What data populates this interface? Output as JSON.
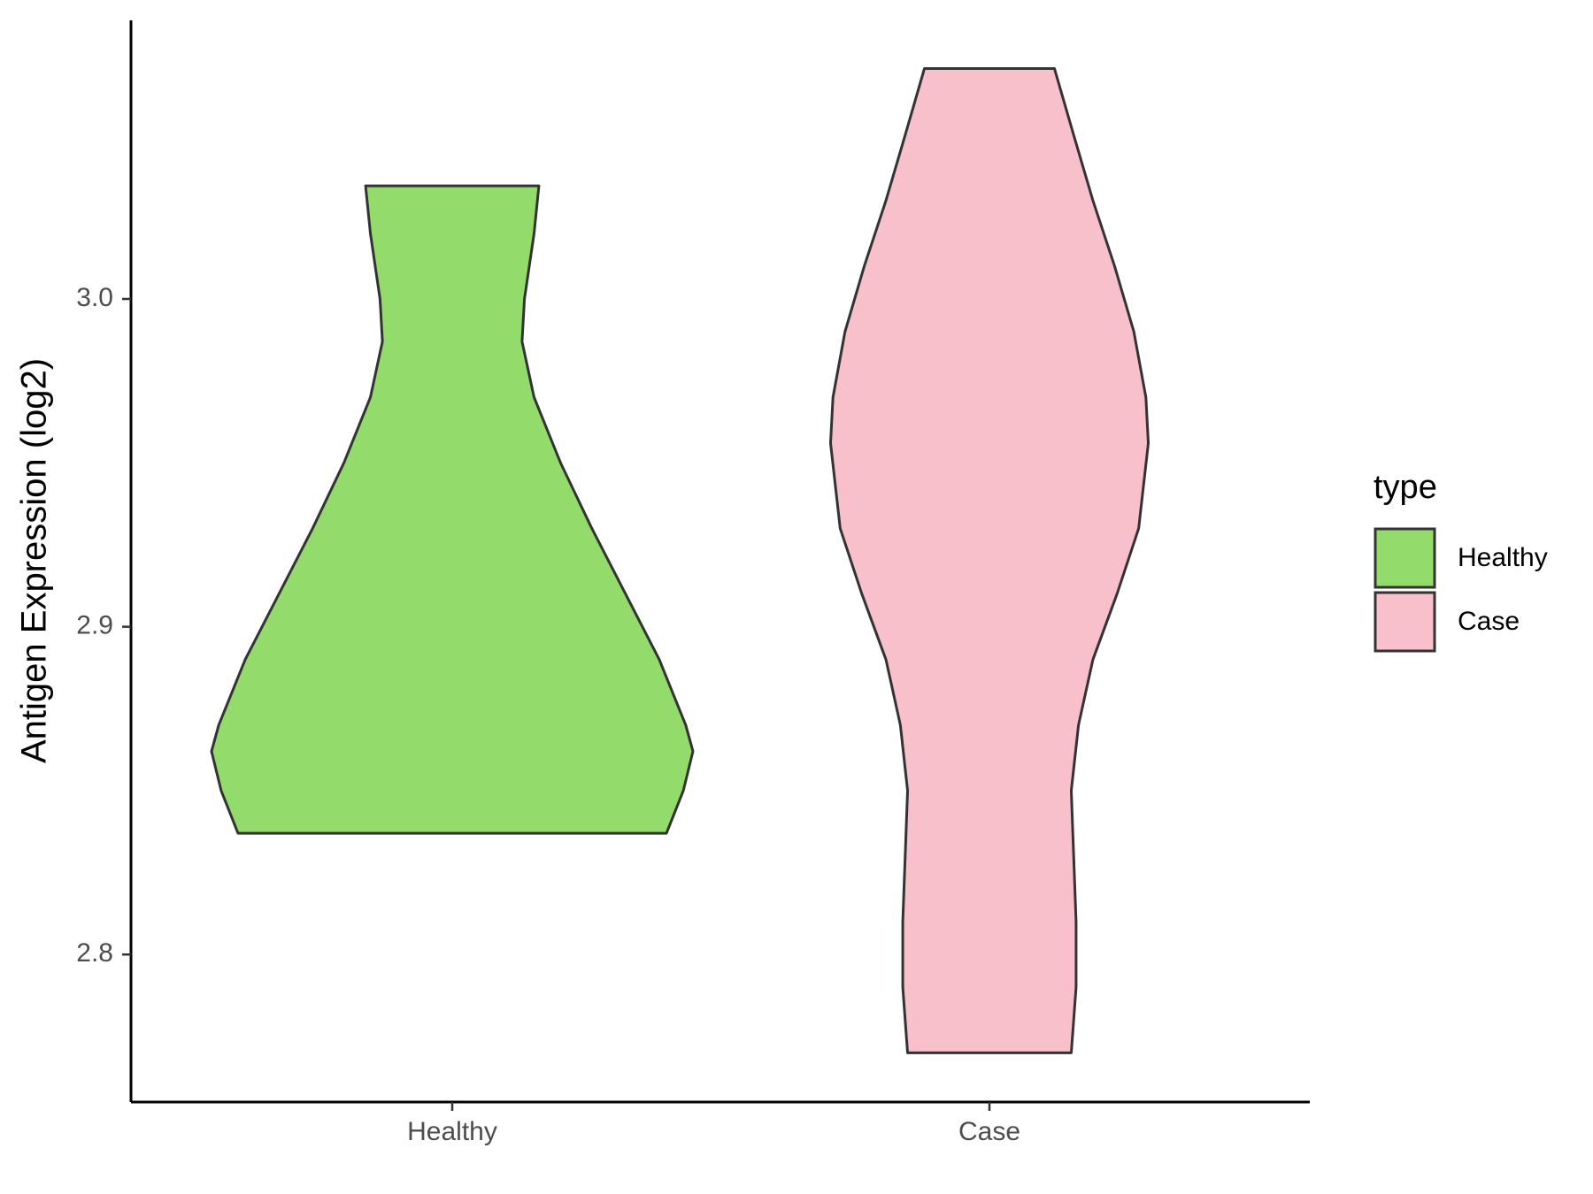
{
  "chart_data": {
    "type": "violin",
    "y_label": "Antigen Expression (log2)",
    "categories": [
      "Healthy",
      "Case"
    ],
    "legend_title": "type",
    "series": [
      {
        "name": "Healthy",
        "color": "#93dc6b",
        "y": [
          2.837,
          2.85,
          2.862,
          2.87,
          2.89,
          2.91,
          2.93,
          2.95,
          2.97,
          2.987,
          3.0,
          3.02,
          3.0345
        ],
        "density": [
          0.89,
          0.96,
          1.0,
          0.97,
          0.86,
          0.72,
          0.58,
          0.45,
          0.34,
          0.29,
          0.3,
          0.34,
          0.36
        ]
      },
      {
        "name": "Case",
        "color": "#f7c0cb",
        "y": [
          2.77,
          2.78,
          2.79,
          2.81,
          2.83,
          2.85,
          2.87,
          2.89,
          2.91,
          2.93,
          2.956,
          2.97,
          2.99,
          3.01,
          3.03,
          3.05,
          3.0703
        ],
        "density": [
          0.34,
          0.35,
          0.36,
          0.36,
          0.35,
          0.34,
          0.37,
          0.43,
          0.53,
          0.62,
          0.66,
          0.65,
          0.6,
          0.52,
          0.43,
          0.35,
          0.27
        ]
      }
    ],
    "ylim": [
      2.755,
      3.085
    ],
    "yticks": [
      {
        "value": 2.8,
        "label": "2.8"
      },
      {
        "value": 2.9,
        "label": "2.9"
      },
      {
        "value": 3.0,
        "label": "3.0"
      }
    ],
    "legend_position": "right"
  }
}
